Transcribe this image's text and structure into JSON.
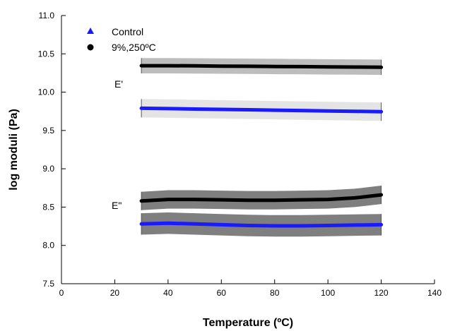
{
  "chart_data": {
    "type": "line",
    "xlabel": "Temperature (ºC)",
    "ylabel": "log moduli (Pa)",
    "xlim": [
      0,
      140
    ],
    "ylim": [
      7.5,
      11.0
    ],
    "xticks": [
      0,
      20,
      40,
      60,
      80,
      100,
      120,
      140
    ],
    "yticks": [
      7.5,
      8.0,
      8.5,
      9.0,
      9.5,
      10.0,
      10.5,
      11.0
    ],
    "grid": false,
    "legend_position": "top-left",
    "legend": [
      {
        "label": "Control",
        "marker": "triangle",
        "color": "#1a1aff"
      },
      {
        "label": "9%,250ºC",
        "marker": "circle",
        "color": "#000000"
      }
    ],
    "annotations": [
      {
        "text": "E'",
        "x": 20,
        "y": 10.05
      },
      {
        "text": "E\"",
        "x": 20,
        "y": 8.5
      }
    ],
    "series": [
      {
        "name": "Control",
        "modulus": "E'",
        "color": "#1a1aff",
        "band_color": "#e4e4e4",
        "x": [
          30,
          40,
          50,
          60,
          70,
          80,
          90,
          100,
          110,
          120
        ],
        "y": [
          9.79,
          9.785,
          9.78,
          9.775,
          9.77,
          9.765,
          9.76,
          9.755,
          9.75,
          9.745
        ],
        "band_halfwidth": 0.12
      },
      {
        "name": "9%,250ºC",
        "modulus": "E'",
        "color": "#000000",
        "band_color": "#bdbdbd",
        "x": [
          30,
          40,
          50,
          60,
          70,
          80,
          90,
          100,
          110,
          120
        ],
        "y": [
          10.345,
          10.345,
          10.343,
          10.34,
          10.338,
          10.335,
          10.333,
          10.33,
          10.328,
          10.325
        ],
        "band_halfwidth": 0.1
      },
      {
        "name": "Control",
        "modulus": "E\"",
        "color": "#1a1aff",
        "band_color": "#7f7f7f",
        "x": [
          30,
          40,
          50,
          60,
          70,
          80,
          90,
          100,
          110,
          120
        ],
        "y": [
          8.28,
          8.29,
          8.28,
          8.27,
          8.26,
          8.255,
          8.255,
          8.26,
          8.265,
          8.27
        ],
        "band_halfwidth": 0.14
      },
      {
        "name": "9%,250ºC",
        "modulus": "E\"",
        "color": "#000000",
        "band_color": "#7f7f7f",
        "x": [
          30,
          40,
          50,
          60,
          70,
          80,
          90,
          100,
          110,
          120
        ],
        "y": [
          8.58,
          8.6,
          8.6,
          8.595,
          8.59,
          8.59,
          8.595,
          8.6,
          8.62,
          8.66
        ],
        "band_halfwidth": 0.12
      }
    ]
  }
}
